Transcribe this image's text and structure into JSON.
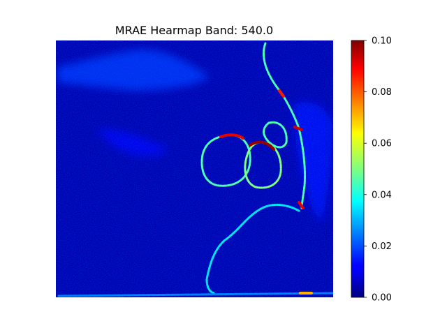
{
  "chart_data": {
    "type": "heatmap",
    "title": "MRAE Hearmap Band: 540.0",
    "xlabel": "",
    "ylabel": "",
    "colormap": "jet",
    "axes_visible": false,
    "grid": false,
    "colorbar": {
      "position": "right",
      "vmin": 0.0,
      "vmax": 0.1,
      "ticks": [
        0.0,
        0.02,
        0.04,
        0.06,
        0.08,
        0.1
      ],
      "tick_labels": [
        "0.00",
        "0.02",
        "0.04",
        "0.06",
        "0.08",
        "0.10"
      ]
    },
    "value_range": [
      0.0,
      0.1
    ],
    "background_level": 0.005,
    "structures": [
      {
        "name": "upper-left-haze",
        "kind": "haze",
        "value": 0.018
      },
      {
        "name": "left-spur-haze",
        "kind": "haze",
        "value": 0.012
      },
      {
        "name": "right-edge-haze",
        "kind": "haze",
        "value": 0.014
      },
      {
        "name": "left-ring",
        "kind": "edge",
        "value": 0.045
      },
      {
        "name": "middle-ring",
        "kind": "edge",
        "value": 0.05
      },
      {
        "name": "upper-ring",
        "kind": "edge",
        "value": 0.045
      },
      {
        "name": "right-vertical-edge",
        "kind": "edge",
        "value": 0.045
      },
      {
        "name": "lower-curved-edge",
        "kind": "edge",
        "value": 0.035
      },
      {
        "name": "bottom-row-edge",
        "kind": "edge",
        "value": 0.025
      },
      {
        "name": "ring-overlap-hotspot",
        "kind": "hotspot",
        "value": 0.098
      },
      {
        "name": "left-ring-hotspot",
        "kind": "hotspot",
        "value": 0.09
      },
      {
        "name": "right-edge-hotspot-upper",
        "kind": "hotspot",
        "value": 0.092
      },
      {
        "name": "right-edge-hotspot-lower",
        "kind": "hotspot",
        "value": 0.09
      },
      {
        "name": "top-right-hotspot",
        "kind": "hotspot",
        "value": 0.085
      },
      {
        "name": "bottom-right-hotspot",
        "kind": "hotspot",
        "value": 0.07
      }
    ]
  }
}
